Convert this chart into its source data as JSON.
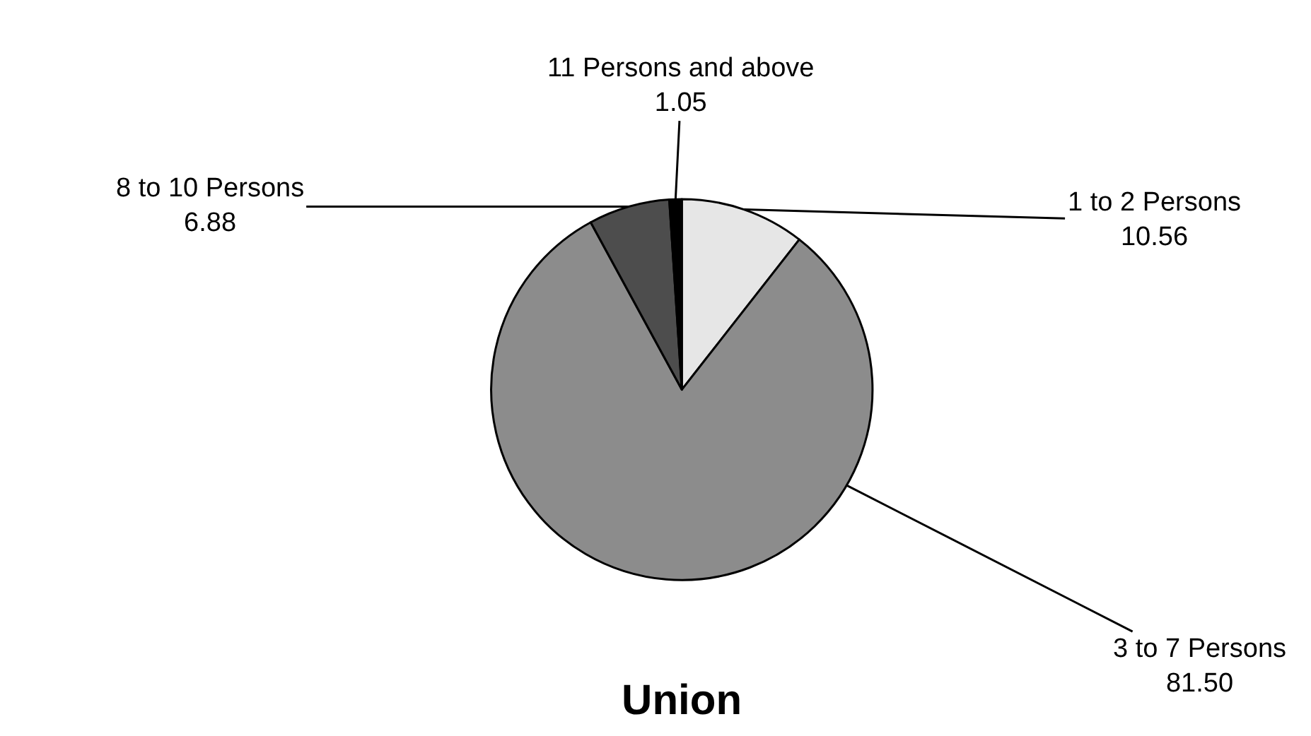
{
  "chart_data": {
    "type": "pie",
    "title": "Union",
    "categories": [
      "1 to 2 Persons",
      "3 to 7 Persons",
      "8 to 10 Persons",
      "11 Persons and above"
    ],
    "values": [
      10.56,
      81.5,
      6.88,
      1.05
    ],
    "value_labels": [
      "10.56",
      "81.50",
      "6.88",
      "1.05"
    ],
    "colors": [
      "#e6e6e6",
      "#8c8c8c",
      "#4d4d4d",
      "#000000"
    ]
  }
}
